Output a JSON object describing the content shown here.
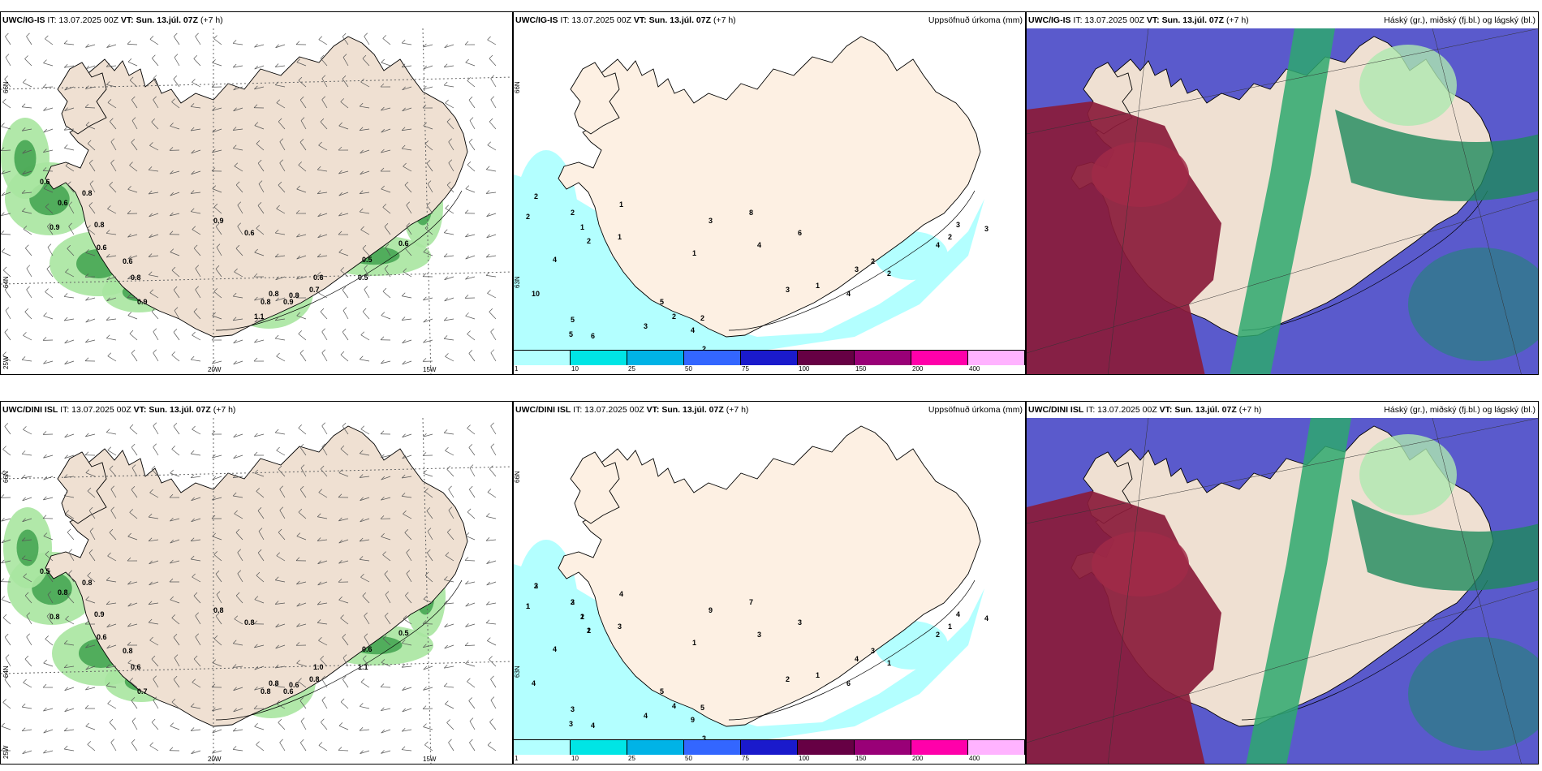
{
  "panels": [
    {
      "model": "UWC/IG-IS",
      "it": "IT: 13.07.2025 00Z",
      "vt": "VT: Sun. 13.júl. 07Z",
      "lead": "(+7 h)",
      "right": "",
      "type": "wind"
    },
    {
      "model": "UWC/IG-IS",
      "it": "IT: 13.07.2025 00Z",
      "vt": "VT: Sun. 13.júl. 07Z",
      "lead": "(+7 h)",
      "right": "Uppsöfnuð úrkoma (mm)",
      "type": "precip"
    },
    {
      "model": "UWC/IG-IS",
      "it": "IT: 13.07.2025 00Z",
      "vt": "VT: Sun. 13.júl. 07Z",
      "lead": "(+7 h)",
      "right": "Háský (gr.), miðský (fj.bl.) og lágský (bl.)",
      "type": "cloud"
    },
    {
      "model": "UWC/DINI ISL",
      "it": "IT: 13.07.2025 00Z",
      "vt": "VT: Sun. 13.júl. 07Z",
      "lead": "(+7 h)",
      "right": "",
      "type": "wind"
    },
    {
      "model": "UWC/DINI ISL",
      "it": "IT: 13.07.2025 00Z",
      "vt": "VT: Sun. 13.júl. 07Z",
      "lead": "(+7 h)",
      "right": "Uppsöfnuð úrkoma (mm)",
      "type": "precip"
    },
    {
      "model": "UWC/DINI ISL",
      "it": "IT: 13.07.2025 00Z",
      "vt": "VT: Sun. 13.júl. 07Z",
      "lead": "(+7 h)",
      "right": "Háský (gr.), miðský (fj.bl.) og lágský (bl.)",
      "type": "cloud"
    }
  ],
  "axes": {
    "lat_66": "66N",
    "lat_64": "64N",
    "lat_63": "63N",
    "lon_20w": "20W",
    "lon_15w": "15W",
    "lon_25w": "25W"
  },
  "legend": {
    "ticks": [
      "1",
      "10",
      "25",
      "50",
      "75",
      "100",
      "150",
      "200",
      "400"
    ],
    "colors": [
      "#b3ffff",
      "#00e5e5",
      "#00b3e6",
      "#3366ff",
      "#1a1acc",
      "#660044",
      "#990077",
      "#ff00aa",
      "#ffb3ff"
    ]
  },
  "wind_labels": {
    "top": [
      "0.6",
      "0.6",
      "0.9",
      "0.8",
      "0.6",
      "0.8",
      "0.6",
      "0.8",
      "0.9",
      "0.9",
      "0.6",
      "0.5",
      "0.6",
      "0.5",
      "0.6",
      "0.7",
      "0.8",
      "0.9",
      "0.8",
      "0.8",
      "1.1"
    ],
    "bottom": [
      "0.5",
      "0.8",
      "0.8",
      "0.8",
      "0.6",
      "0.9",
      "0.8",
      "0.6",
      "0.7",
      "0.8",
      "0.8",
      "0.6",
      "0.5",
      "1.1",
      "1.0",
      "0.8",
      "0.8",
      "0.6",
      "0.8",
      "0.6"
    ]
  },
  "precip_labels": {
    "top": [
      "2",
      "2",
      "2",
      "1",
      "2",
      "4",
      "1",
      "1",
      "10",
      "5",
      "5",
      "6",
      "5",
      "3",
      "2",
      "4",
      "2",
      "2",
      "1",
      "4",
      "3",
      "1",
      "6",
      "8",
      "3",
      "4",
      "3",
      "2",
      "2",
      "4",
      "2",
      "3",
      "3"
    ],
    "bottom": [
      "2",
      "1",
      "2",
      "1",
      "1",
      "4",
      "3",
      "4",
      "4",
      "3",
      "3",
      "4",
      "5",
      "4",
      "4",
      "9",
      "5",
      "3",
      "1",
      "3",
      "2",
      "1",
      "3",
      "7",
      "9",
      "6",
      "4",
      "3",
      "1",
      "2",
      "1",
      "4",
      "4",
      "3",
      "1",
      "3",
      "2",
      "2"
    ]
  }
}
